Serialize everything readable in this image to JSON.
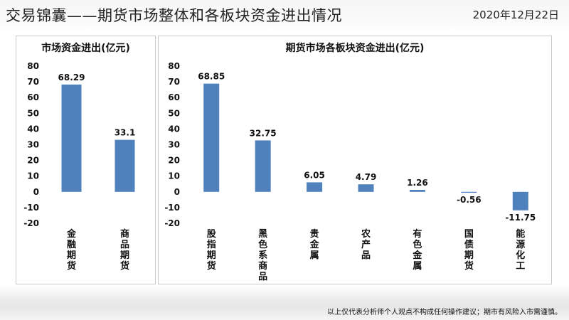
{
  "header": {
    "title": "交易锦囊——期货市场整体和各板块资金进出情况",
    "date": "2020年12月22日"
  },
  "footer": {
    "disclaimer": "以上仅代表分析师个人观点不构成任何操作建议；期市有风险入市需谨慎。"
  },
  "colors": {
    "bar": "#4f81bd"
  },
  "chart_data": [
    {
      "type": "bar",
      "title": "市场资金进出(亿元)",
      "categories": [
        "金融期货",
        "商品期货"
      ],
      "values": [
        68.29,
        33.1
      ],
      "value_labels": [
        "68.29",
        "33.1"
      ],
      "yticks": [
        "80",
        "70",
        "60",
        "50",
        "40",
        "30",
        "20",
        "10",
        "0",
        "-10",
        "-20"
      ],
      "ylim": [
        -20,
        80
      ],
      "grid": false,
      "legend": "none"
    },
    {
      "type": "bar",
      "title": "期货市场各板块资金进出(亿元)",
      "categories": [
        "股指期货",
        "黑色系商品",
        "贵金属",
        "农产品",
        "有色金属",
        "国债期货",
        "能源化工"
      ],
      "values": [
        68.85,
        32.75,
        6.05,
        4.79,
        1.26,
        -0.56,
        -11.75
      ],
      "value_labels": [
        "68.85",
        "32.75",
        "6.05",
        "4.79",
        "1.26",
        "-0.56",
        "-11.75"
      ],
      "yticks": [
        "80",
        "70",
        "60",
        "50",
        "40",
        "30",
        "20",
        "10",
        "0",
        "-10",
        "-20"
      ],
      "ylim": [
        -20,
        80
      ],
      "grid": false,
      "legend": "none"
    }
  ]
}
